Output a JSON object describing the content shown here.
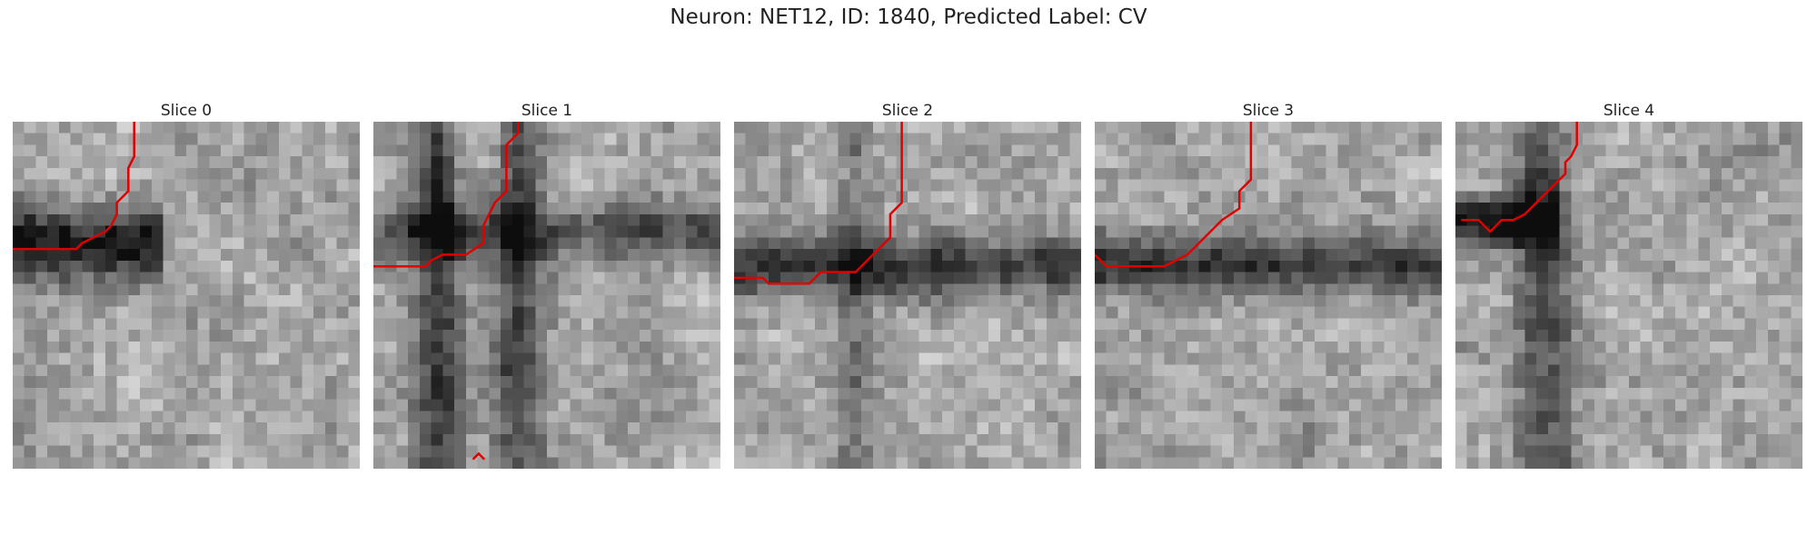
{
  "figure": {
    "title": "Neuron: NET12, ID: 1840, Predicted Label: CV"
  },
  "panels": [
    {
      "title": "Slice 0"
    },
    {
      "title": "Slice 1"
    },
    {
      "title": "Slice 2"
    },
    {
      "title": "Slice 3"
    },
    {
      "title": "Slice 4"
    }
  ],
  "colors": {
    "contour": "#e00000",
    "background": "#ffffff"
  }
}
